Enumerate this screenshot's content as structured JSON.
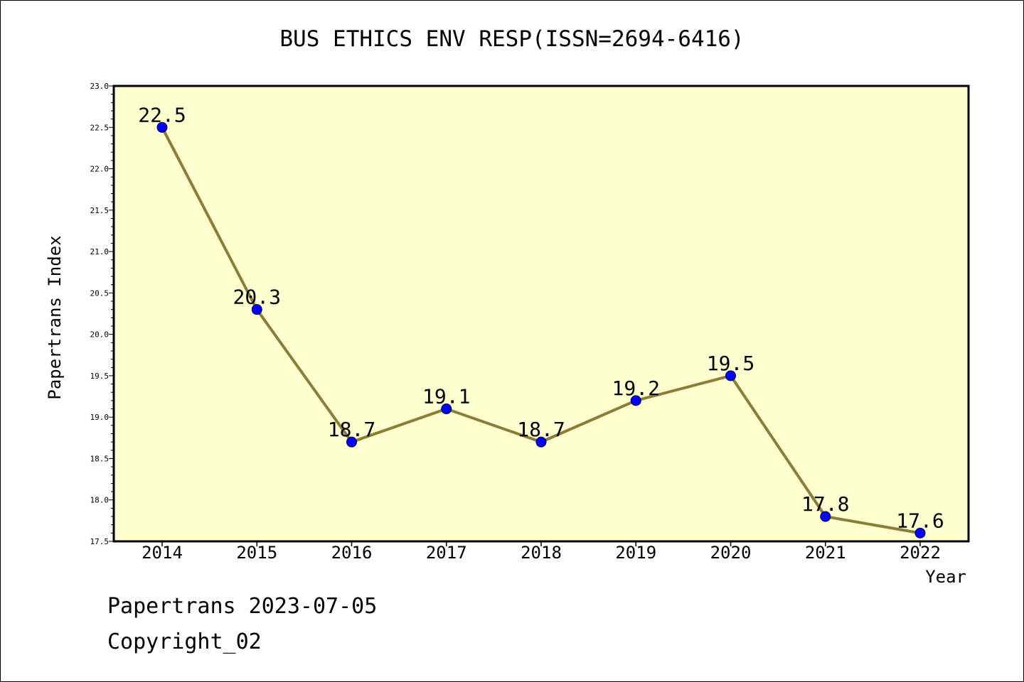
{
  "chart_data": {
    "type": "line",
    "title": "BUS ETHICS ENV RESP(ISSN=2694-6416)",
    "xlabel": "Year",
    "ylabel": "Papertrans Index",
    "categories": [
      "2014",
      "2015",
      "2016",
      "2017",
      "2018",
      "2019",
      "2020",
      "2021",
      "2022"
    ],
    "series": [
      {
        "values": [
          22.5,
          20.3,
          18.7,
          19.1,
          18.7,
          19.2,
          19.5,
          17.8,
          17.6
        ],
        "labels": [
          "22.5",
          "20.3",
          "18.7",
          "19.1",
          "18.7",
          "19.2",
          "19.5",
          "17.8",
          "17.6"
        ]
      }
    ],
    "ylim": [
      17.5,
      23.0
    ],
    "yticks": [
      "17.5",
      "18.0",
      "18.5",
      "19.0",
      "19.5",
      "20.0",
      "20.5",
      "21.0",
      "21.5",
      "22.0",
      "22.5",
      "23.0"
    ],
    "grid": false,
    "legend": "none",
    "colors": {
      "plot_background": "#ffffd0",
      "line": "#8b7d3a",
      "marker": "#0000ff"
    }
  },
  "footer": {
    "line_1": "Papertrans 2023-07-05",
    "line_2": "Copyright_02"
  }
}
